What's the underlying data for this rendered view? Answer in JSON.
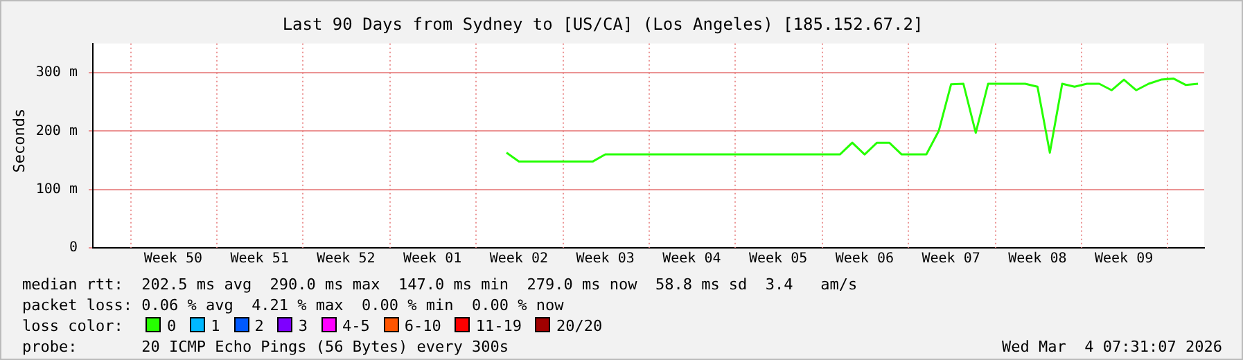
{
  "chart_data": {
    "type": "line",
    "title": "Last 90 Days from Sydney to [US/CA] (Los Angeles) [185.152.67.2]",
    "ylabel": "Seconds",
    "legend_title": "loss color:",
    "legend": "bottom",
    "grid": true,
    "marker": "none",
    "line_style": "solid",
    "categories": [
      null,
      null,
      null,
      null,
      null,
      null,
      "Week 50",
      null,
      null,
      null,
      null,
      null,
      null,
      "Week 51",
      null,
      null,
      null,
      null,
      null,
      null,
      "Week 52",
      null,
      null,
      null,
      null,
      null,
      null,
      "Week 01",
      null,
      null,
      null,
      null,
      null,
      null,
      "Week 02",
      null,
      null,
      null,
      null,
      null,
      null,
      "Week 03",
      null,
      null,
      null,
      null,
      null,
      null,
      "Week 04",
      null,
      null,
      null,
      null,
      null,
      null,
      "Week 05",
      null,
      null,
      null,
      null,
      null,
      null,
      "Week 06",
      null,
      null,
      null,
      null,
      null,
      null,
      "Week 07",
      null,
      null,
      null,
      null,
      null,
      null,
      "Week 08",
      null,
      null,
      null,
      null,
      null,
      null,
      "Week 09",
      null,
      null,
      null,
      null,
      null,
      null
    ],
    "ylim": [
      0,
      350
    ],
    "yticks": [
      0,
      {
        "value": 100,
        "label": "100 m"
      },
      {
        "value": 200,
        "label": "200 m"
      },
      {
        "value": 300,
        "label": "300 m"
      }
    ],
    "series": [
      {
        "name": "0",
        "color": "#26ff00",
        "values": [
          null,
          null,
          null,
          null,
          null,
          null,
          null,
          null,
          null,
          null,
          null,
          null,
          null,
          null,
          null,
          null,
          null,
          null,
          null,
          null,
          null,
          null,
          null,
          null,
          null,
          null,
          null,
          null,
          null,
          null,
          null,
          null,
          null,
          163,
          148,
          148,
          148,
          148,
          148,
          148,
          148,
          160,
          160,
          160,
          160,
          160,
          160,
          160,
          160,
          160,
          160,
          160,
          160,
          160,
          160,
          160,
          160,
          160,
          160,
          160,
          160,
          180,
          160,
          180,
          180,
          160,
          160,
          160,
          200,
          280,
          281,
          197,
          281,
          281,
          281,
          281,
          276,
          163,
          281,
          276,
          281,
          281,
          270,
          288,
          270,
          281,
          288,
          290,
          279,
          281
        ]
      },
      {
        "name": "1",
        "color": "#00b8ff",
        "values": [
          null,
          null,
          null,
          null,
          null,
          null,
          null,
          null,
          null,
          null,
          null,
          null,
          null,
          null,
          null,
          null,
          null,
          null,
          null,
          null,
          null,
          null,
          null,
          null,
          null,
          null,
          null,
          null,
          null,
          null,
          null,
          null,
          null,
          null,
          null,
          null,
          null,
          null,
          null,
          null,
          null,
          null,
          null,
          null,
          null,
          null,
          null,
          null,
          null,
          null,
          null,
          null,
          null,
          null,
          null,
          null,
          null,
          null,
          null,
          null,
          null,
          null,
          null,
          null,
          null,
          null,
          null,
          null,
          null,
          null,
          null,
          null,
          null,
          null,
          null,
          null,
          null,
          null,
          null,
          null,
          null,
          null,
          null,
          null,
          null,
          null,
          null,
          null,
          null,
          null
        ]
      },
      {
        "name": "2",
        "color": "#0059ff",
        "values": [
          null,
          null,
          null,
          null,
          null,
          null,
          null,
          null,
          null,
          null,
          null,
          null,
          null,
          null,
          null,
          null,
          null,
          null,
          null,
          null,
          null,
          null,
          null,
          null,
          null,
          null,
          null,
          null,
          null,
          null,
          null,
          null,
          null,
          null,
          null,
          null,
          null,
          null,
          null,
          null,
          null,
          null,
          null,
          null,
          null,
          null,
          null,
          null,
          null,
          null,
          null,
          null,
          null,
          null,
          null,
          null,
          null,
          null,
          null,
          null,
          null,
          null,
          null,
          null,
          null,
          null,
          null,
          null,
          null,
          null,
          null,
          null,
          null,
          null,
          null,
          null,
          null,
          null,
          null,
          null,
          null,
          null,
          null,
          null,
          null,
          null,
          null,
          null,
          null,
          null
        ]
      },
      {
        "name": "3",
        "color": "#7e00ff",
        "values": [
          null,
          null,
          null,
          null,
          null,
          null,
          null,
          null,
          null,
          null,
          null,
          null,
          null,
          null,
          null,
          null,
          null,
          null,
          null,
          null,
          null,
          null,
          null,
          null,
          null,
          null,
          null,
          null,
          null,
          null,
          null,
          null,
          null,
          null,
          null,
          null,
          null,
          null,
          null,
          null,
          null,
          null,
          null,
          null,
          null,
          null,
          null,
          null,
          null,
          null,
          null,
          null,
          null,
          null,
          null,
          null,
          null,
          null,
          null,
          null,
          null,
          null,
          null,
          null,
          null,
          null,
          null,
          null,
          null,
          null,
          null,
          null,
          null,
          null,
          null,
          null,
          null,
          null,
          null,
          null,
          null,
          null,
          null,
          null,
          null,
          null,
          null,
          null,
          null,
          null
        ]
      },
      {
        "name": "4-5",
        "color": "#ff00ff",
        "values": [
          null,
          null,
          null,
          null,
          null,
          null,
          null,
          null,
          null,
          null,
          null,
          null,
          null,
          null,
          null,
          null,
          null,
          null,
          null,
          null,
          null,
          null,
          null,
          null,
          null,
          null,
          null,
          null,
          null,
          null,
          null,
          null,
          null,
          null,
          null,
          null,
          null,
          null,
          null,
          null,
          null,
          null,
          null,
          null,
          null,
          null,
          null,
          null,
          null,
          null,
          null,
          null,
          null,
          null,
          null,
          null,
          null,
          null,
          null,
          null,
          null,
          null,
          null,
          null,
          null,
          null,
          null,
          null,
          null,
          null,
          null,
          null,
          null,
          null,
          null,
          null,
          null,
          null,
          null,
          null,
          null,
          null,
          null,
          null,
          null,
          null,
          null,
          null,
          null,
          null
        ]
      },
      {
        "name": "6-10",
        "color": "#ff5500",
        "values": [
          null,
          null,
          null,
          null,
          null,
          null,
          null,
          null,
          null,
          null,
          null,
          null,
          null,
          null,
          null,
          null,
          null,
          null,
          null,
          null,
          null,
          null,
          null,
          null,
          null,
          null,
          null,
          null,
          null,
          null,
          null,
          null,
          null,
          null,
          null,
          null,
          null,
          null,
          null,
          null,
          null,
          null,
          null,
          null,
          null,
          null,
          null,
          null,
          null,
          null,
          null,
          null,
          null,
          null,
          null,
          null,
          null,
          null,
          null,
          null,
          null,
          null,
          null,
          null,
          null,
          null,
          null,
          null,
          null,
          null,
          null,
          null,
          null,
          null,
          null,
          null,
          null,
          null,
          null,
          null,
          null,
          null,
          null,
          null,
          null,
          null,
          null,
          null,
          null,
          null
        ]
      },
      {
        "name": "11-19",
        "color": "#ff0000",
        "values": [
          null,
          null,
          null,
          null,
          null,
          null,
          null,
          null,
          null,
          null,
          null,
          null,
          null,
          null,
          null,
          null,
          null,
          null,
          null,
          null,
          null,
          null,
          null,
          null,
          null,
          null,
          null,
          null,
          null,
          null,
          null,
          null,
          null,
          null,
          null,
          null,
          null,
          null,
          null,
          null,
          null,
          null,
          null,
          null,
          null,
          null,
          null,
          null,
          null,
          null,
          null,
          null,
          null,
          null,
          null,
          null,
          null,
          null,
          null,
          null,
          null,
          null,
          null,
          null,
          null,
          null,
          null,
          null,
          null,
          null,
          null,
          null,
          null,
          null,
          null,
          null,
          null,
          null,
          null,
          null,
          null,
          null,
          null,
          null,
          null,
          null,
          null,
          null,
          null,
          null
        ]
      },
      {
        "name": "20/20",
        "color": "#a10000",
        "values": [
          null,
          null,
          null,
          null,
          null,
          null,
          null,
          null,
          null,
          null,
          null,
          null,
          null,
          null,
          null,
          null,
          null,
          null,
          null,
          null,
          null,
          null,
          null,
          null,
          null,
          null,
          null,
          null,
          null,
          null,
          null,
          null,
          null,
          null,
          null,
          null,
          null,
          null,
          null,
          null,
          null,
          null,
          null,
          null,
          null,
          null,
          null,
          null,
          null,
          null,
          null,
          null,
          null,
          null,
          null,
          null,
          null,
          null,
          null,
          null,
          null,
          null,
          null,
          null,
          null,
          null,
          null,
          null,
          null,
          null,
          null,
          null,
          null,
          null,
          null,
          null,
          null,
          null,
          null,
          null,
          null,
          null,
          null,
          null,
          null,
          null,
          null,
          null,
          null,
          null
        ]
      }
    ],
    "annotations": [
      "median rtt:  202.5 ms avg  290.0 ms max  147.0 ms min  279.0 ms now  58.8 ms sd  3.4   am/s",
      "packet loss: 0.06 % avg  4.21 % max  0.00 % min  0.00 % now",
      "probe:       20 ICMP Echo Pings (56 Bytes) every 300s",
      "Wed Mar  4 07:31:07 2026"
    ]
  }
}
